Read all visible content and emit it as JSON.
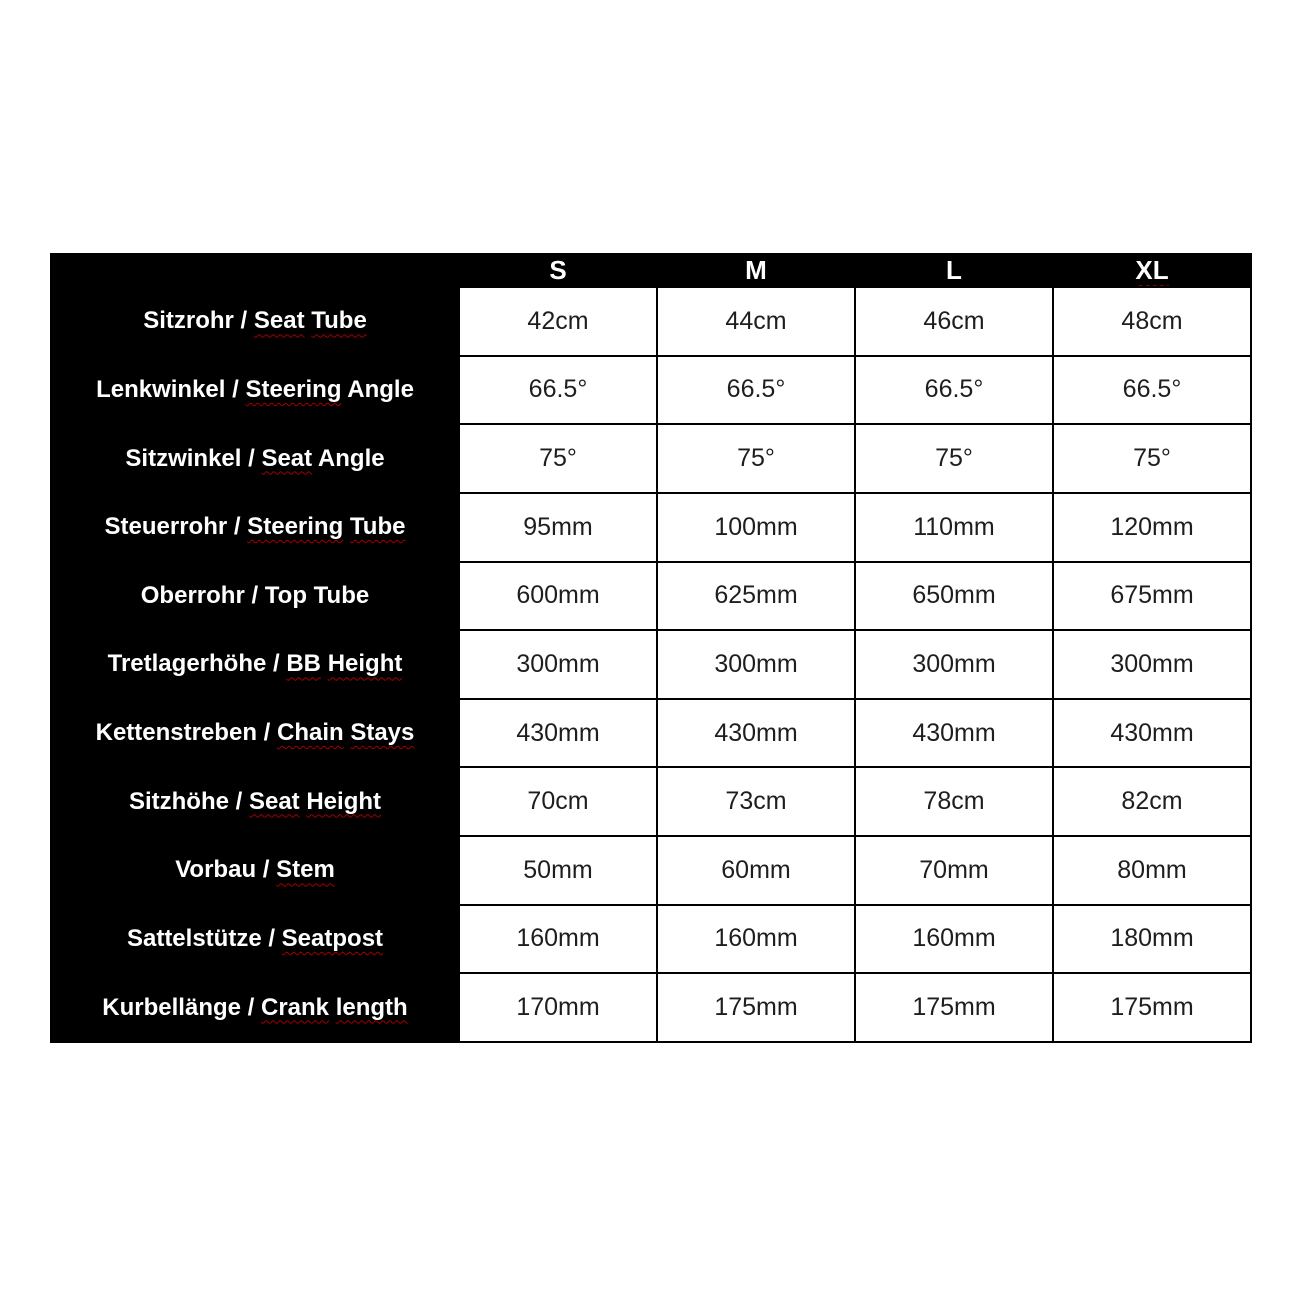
{
  "page": {
    "background": "#ffffff"
  },
  "colors": {
    "table_bg": "#000000",
    "header_text": "#ffffff",
    "label_text": "#ffffff",
    "cell_bg": "#ffffff",
    "value_text": "#1e1e1e",
    "gridline": "#000000",
    "squiggle": "#a40000"
  },
  "chart_data": {
    "type": "table",
    "title": "Bike frame geometry specification table (German / English)",
    "separator": " / ",
    "columns": [
      "S",
      "M",
      "L",
      "XL"
    ],
    "column_flagged": [
      false,
      false,
      false,
      true
    ],
    "rows": [
      {
        "label_de": "Sitzrohr",
        "label_en": "Seat Tube",
        "flagged_words": [
          "Seat",
          "Tube"
        ],
        "values": [
          "42cm",
          "44cm",
          "46cm",
          "48cm"
        ]
      },
      {
        "label_de": "Lenkwinkel",
        "label_en": "Steering Angle",
        "flagged_words": [
          "Steering"
        ],
        "values": [
          "66.5°",
          "66.5°",
          "66.5°",
          "66.5°"
        ]
      },
      {
        "label_de": "Sitzwinkel",
        "label_en": "Seat Angle",
        "flagged_words": [
          "Seat"
        ],
        "values": [
          "75°",
          "75°",
          "75°",
          "75°"
        ]
      },
      {
        "label_de": "Steuerrohr",
        "label_en": "Steering Tube",
        "flagged_words": [
          "Steering",
          "Tube"
        ],
        "values": [
          "95mm",
          "100mm",
          "110mm",
          "120mm"
        ]
      },
      {
        "label_de": "Oberrohr",
        "label_en": "Top Tube",
        "flagged_words": [],
        "values": [
          "600mm",
          "625mm",
          "650mm",
          "675mm"
        ]
      },
      {
        "label_de": "Tretlagerhöhe",
        "label_en": "BB Height",
        "flagged_words": [
          "BB",
          "Height"
        ],
        "values": [
          "300mm",
          "300mm",
          "300mm",
          "300mm"
        ]
      },
      {
        "label_de": "Kettenstreben",
        "label_en": "Chain Stays",
        "flagged_words": [
          "Chain",
          "Stays"
        ],
        "values": [
          "430mm",
          "430mm",
          "430mm",
          "430mm"
        ]
      },
      {
        "label_de": "Sitzhöhe",
        "label_en": "Seat Height",
        "flagged_words": [
          "Seat",
          "Height"
        ],
        "values": [
          "70cm",
          "73cm",
          "78cm",
          "82cm"
        ]
      },
      {
        "label_de": "Vorbau",
        "label_en": "Stem",
        "flagged_words": [
          "Stem"
        ],
        "values": [
          "50mm",
          "60mm",
          "70mm",
          "80mm"
        ]
      },
      {
        "label_de": "Sattelstütze",
        "label_en": "Seatpost",
        "flagged_words": [
          "Seatpost"
        ],
        "values": [
          "160mm",
          "160mm",
          "160mm",
          "180mm"
        ]
      },
      {
        "label_de": "Kurbellänge",
        "label_en": "Crank length",
        "flagged_words": [
          "Crank",
          "length"
        ],
        "values": [
          "170mm",
          "175mm",
          "175mm",
          "175mm"
        ]
      }
    ],
    "layout": {
      "grid": "on",
      "label_column": "left, black background, white bold text",
      "header_row": "top, black background, white bold text"
    }
  }
}
